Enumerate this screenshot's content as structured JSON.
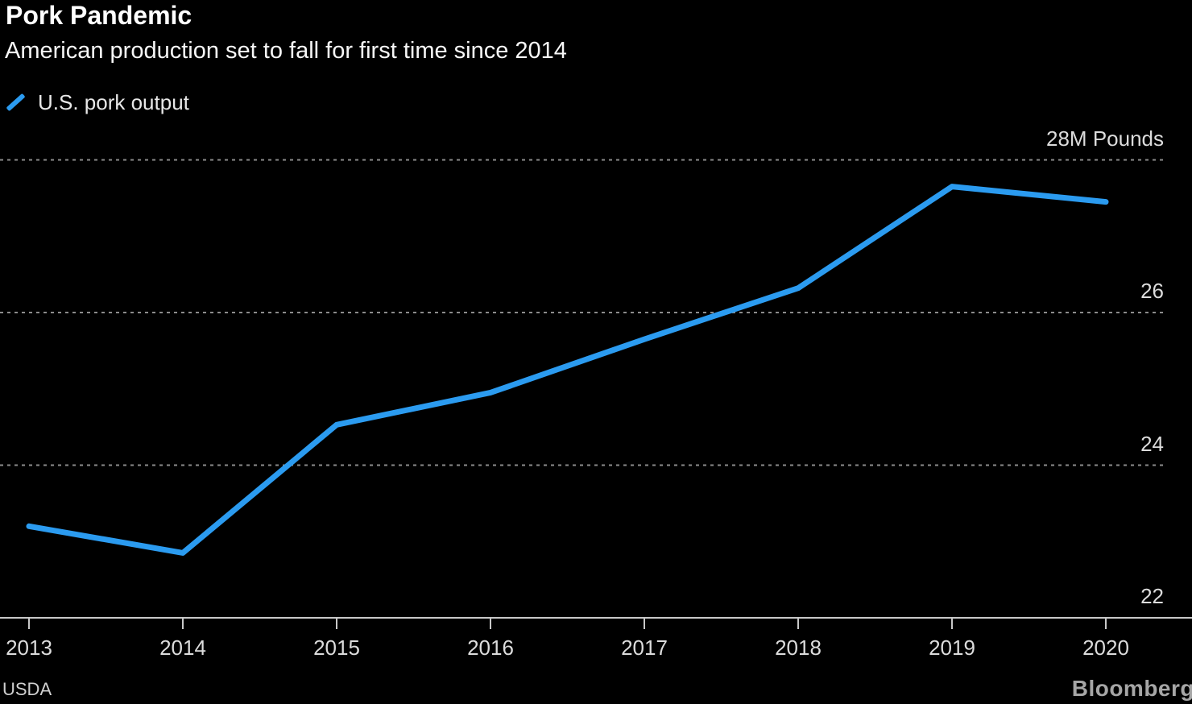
{
  "header": {
    "title": "Pork Pandemic",
    "subtitle": "American production set to fall for first time since 2014"
  },
  "legend": {
    "label": "U.S. pork output",
    "color": "#2b9bf0"
  },
  "chart_data": {
    "type": "line",
    "title": "Pork Pandemic",
    "subtitle": "American production set to fall for first time since 2014",
    "x": [
      2013,
      2014,
      2015,
      2016,
      2017,
      2018,
      2019,
      2020
    ],
    "series": [
      {
        "name": "U.S. pork output",
        "values": [
          23.2,
          22.85,
          24.53,
          24.95,
          25.65,
          26.32,
          27.65,
          27.45
        ],
        "color": "#2b9bf0"
      }
    ],
    "unit": "M Pounds",
    "ylim": [
      22,
      28.6
    ],
    "yticks": [
      {
        "value": 28,
        "label": "28M Pounds"
      },
      {
        "value": 26,
        "label": "26"
      },
      {
        "value": 24,
        "label": "24"
      },
      {
        "value": 22,
        "label": "22"
      }
    ],
    "grid": "dotted horizontal gridlines at 24, 26, 28; solid baseline at 22",
    "legend_position": "top-left",
    "axis_color": "#c8c8c8",
    "gridline_color": "#8c8c8c",
    "background_color": "#000000"
  },
  "footer": {
    "source": "USDA",
    "brand": "Bloomberg"
  }
}
